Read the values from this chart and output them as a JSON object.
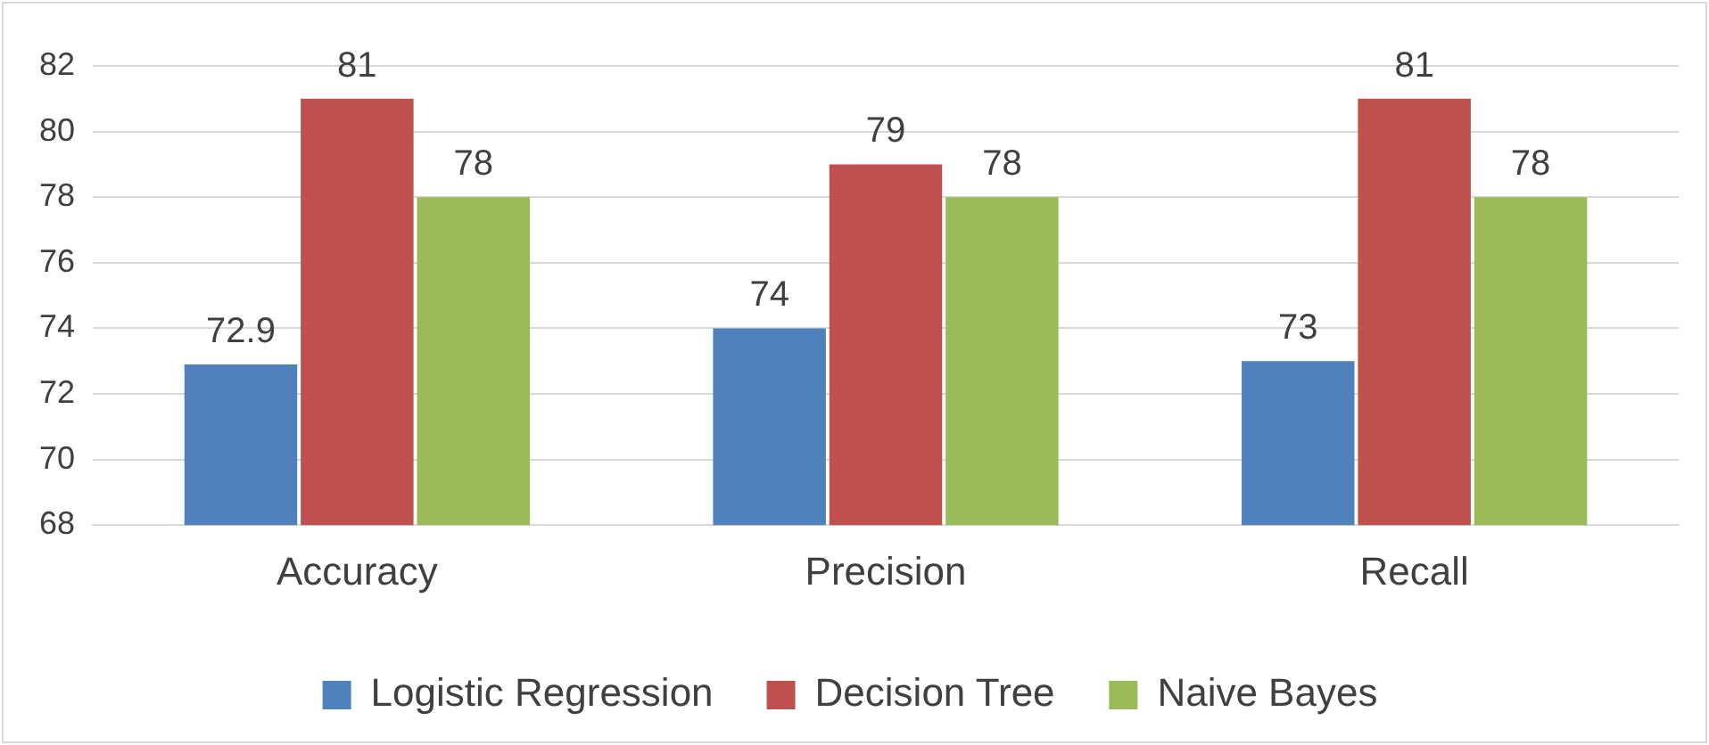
{
  "chart_data": {
    "type": "bar",
    "categories": [
      "Accuracy",
      "Precision",
      "Recall"
    ],
    "series": [
      {
        "name": "Logistic Regression",
        "color": "#4f81bd",
        "values": [
          72.9,
          74,
          73
        ]
      },
      {
        "name": "Decision Tree",
        "color": "#c0504d",
        "values": [
          81,
          79,
          81
        ]
      },
      {
        "name": "Naive Bayes",
        "color": "#9bbb59",
        "values": [
          78,
          78,
          78
        ]
      }
    ],
    "ylim": [
      68,
      82
    ],
    "yticks": [
      68,
      70,
      72,
      74,
      76,
      78,
      80,
      82
    ],
    "grid": "y",
    "legend": "bottom",
    "data_labels": true
  }
}
